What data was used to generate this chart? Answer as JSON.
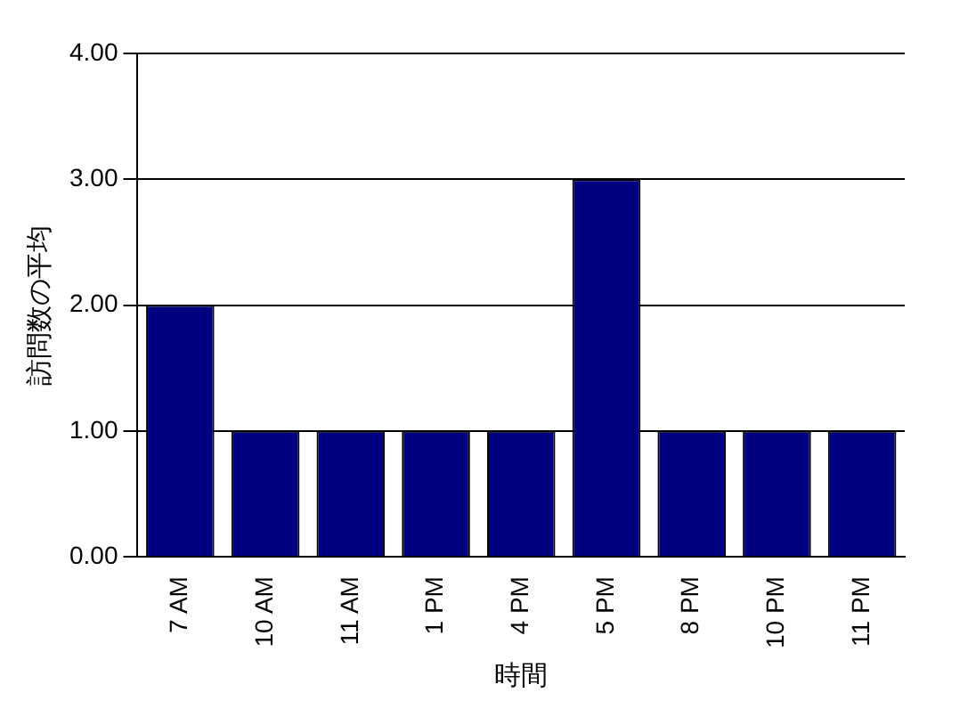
{
  "chart_data": {
    "type": "bar",
    "xlabel": "時間",
    "ylabel": "訪問数の平均",
    "categories": [
      "7 AM",
      "10 AM",
      "11 AM",
      "1 PM",
      "4 PM",
      "5 PM",
      "8 PM",
      "10 PM",
      "11 PM"
    ],
    "values": [
      2,
      1,
      1,
      1,
      1,
      3,
      1,
      1,
      1
    ],
    "color": "#000080",
    "ylim": [
      0,
      4
    ],
    "yticks": [
      {
        "value": 0,
        "label": "0.00"
      },
      {
        "value": 1,
        "label": "1.00"
      },
      {
        "value": 2,
        "label": "2.00"
      },
      {
        "value": 3,
        "label": "3.00"
      },
      {
        "value": 4,
        "label": "4.00"
      }
    ],
    "grid": "y",
    "legend": false
  }
}
